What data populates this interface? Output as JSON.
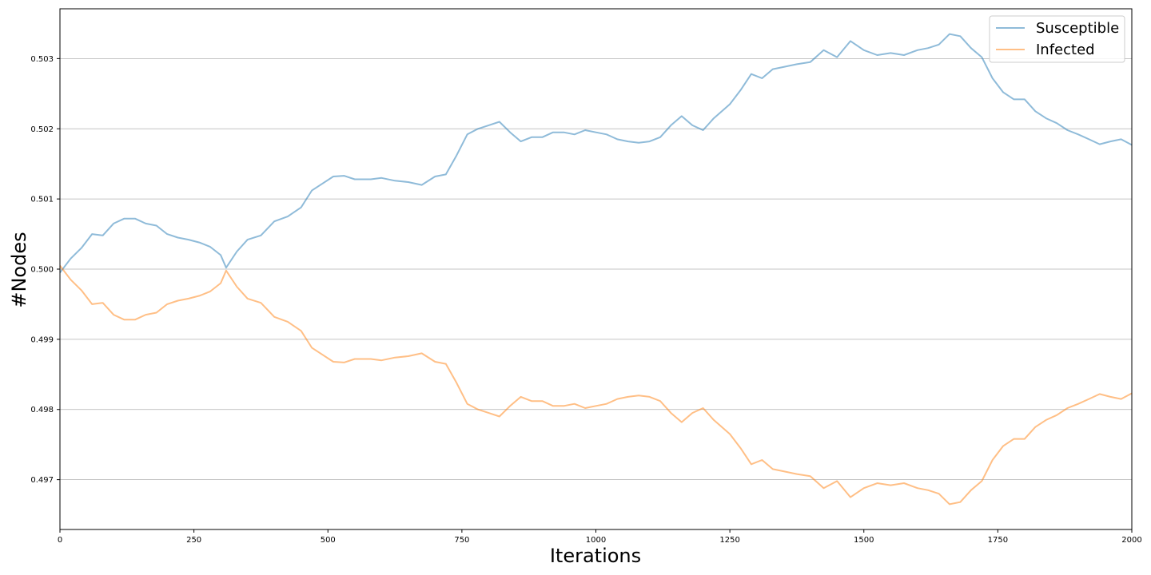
{
  "chart_data": {
    "type": "line",
    "title": "",
    "xlabel": "Iterations",
    "ylabel": "#Nodes",
    "xlim": [
      0,
      2000
    ],
    "ylim": [
      0.49629,
      0.50371
    ],
    "xticks": [
      0,
      250,
      500,
      750,
      1000,
      1250,
      1500,
      1750,
      2000
    ],
    "xtick_labels": [
      "0",
      "250",
      "500",
      "750",
      "1000",
      "1250",
      "1500",
      "1750",
      "2000"
    ],
    "yticks": [
      0.497,
      0.498,
      0.499,
      0.5,
      0.501,
      0.502,
      0.503
    ],
    "ytick_labels": [
      "0.497",
      "0.498",
      "0.499",
      "0.500",
      "0.501",
      "0.502",
      "0.503"
    ],
    "grid": "horizontal",
    "legend_position": "top-right",
    "series": [
      {
        "name": "Susceptible",
        "color": "#1f77b4",
        "points": [
          [
            0,
            0.49995
          ],
          [
            20,
            0.50015
          ],
          [
            40,
            0.5003
          ],
          [
            60,
            0.5005
          ],
          [
            80,
            0.50048
          ],
          [
            100,
            0.50065
          ],
          [
            120,
            0.50072
          ],
          [
            140,
            0.50072
          ],
          [
            160,
            0.50065
          ],
          [
            180,
            0.50062
          ],
          [
            200,
            0.5005
          ],
          [
            220,
            0.50045
          ],
          [
            240,
            0.50042
          ],
          [
            260,
            0.50038
          ],
          [
            280,
            0.50032
          ],
          [
            300,
            0.5002
          ],
          [
            310,
            0.50002
          ],
          [
            330,
            0.50025
          ],
          [
            350,
            0.50042
          ],
          [
            375,
            0.50048
          ],
          [
            400,
            0.50068
          ],
          [
            425,
            0.50075
          ],
          [
            450,
            0.50088
          ],
          [
            470,
            0.50112
          ],
          [
            490,
            0.50122
          ],
          [
            510,
            0.50132
          ],
          [
            530,
            0.50133
          ],
          [
            550,
            0.50128
          ],
          [
            580,
            0.50128
          ],
          [
            600,
            0.5013
          ],
          [
            625,
            0.50126
          ],
          [
            650,
            0.50124
          ],
          [
            675,
            0.5012
          ],
          [
            700,
            0.50132
          ],
          [
            720,
            0.50135
          ],
          [
            740,
            0.50162
          ],
          [
            760,
            0.50192
          ],
          [
            780,
            0.502
          ],
          [
            800,
            0.50205
          ],
          [
            820,
            0.5021
          ],
          [
            840,
            0.50195
          ],
          [
            860,
            0.50182
          ],
          [
            880,
            0.50188
          ],
          [
            900,
            0.50188
          ],
          [
            920,
            0.50195
          ],
          [
            940,
            0.50195
          ],
          [
            960,
            0.50192
          ],
          [
            980,
            0.50198
          ],
          [
            1000,
            0.50195
          ],
          [
            1020,
            0.50192
          ],
          [
            1040,
            0.50185
          ],
          [
            1060,
            0.50182
          ],
          [
            1080,
            0.5018
          ],
          [
            1100,
            0.50182
          ],
          [
            1120,
            0.50188
          ],
          [
            1140,
            0.50205
          ],
          [
            1160,
            0.50218
          ],
          [
            1180,
            0.50205
          ],
          [
            1200,
            0.50198
          ],
          [
            1220,
            0.50215
          ],
          [
            1250,
            0.50235
          ],
          [
            1270,
            0.50255
          ],
          [
            1290,
            0.50278
          ],
          [
            1310,
            0.50272
          ],
          [
            1330,
            0.50285
          ],
          [
            1350,
            0.50288
          ],
          [
            1375,
            0.50292
          ],
          [
            1400,
            0.50295
          ],
          [
            1425,
            0.50312
          ],
          [
            1450,
            0.50302
          ],
          [
            1475,
            0.50325
          ],
          [
            1500,
            0.50312
          ],
          [
            1525,
            0.50305
          ],
          [
            1550,
            0.50308
          ],
          [
            1575,
            0.50305
          ],
          [
            1600,
            0.50312
          ],
          [
            1620,
            0.50315
          ],
          [
            1640,
            0.5032
          ],
          [
            1660,
            0.50335
          ],
          [
            1680,
            0.50332
          ],
          [
            1700,
            0.50315
          ],
          [
            1720,
            0.50302
          ],
          [
            1740,
            0.50272
          ],
          [
            1760,
            0.50252
          ],
          [
            1780,
            0.50242
          ],
          [
            1800,
            0.50242
          ],
          [
            1820,
            0.50225
          ],
          [
            1840,
            0.50215
          ],
          [
            1860,
            0.50208
          ],
          [
            1880,
            0.50198
          ],
          [
            1900,
            0.50192
          ],
          [
            1920,
            0.50185
          ],
          [
            1940,
            0.50178
          ],
          [
            1960,
            0.50182
          ],
          [
            1980,
            0.50185
          ],
          [
            2000,
            0.50177
          ]
        ]
      },
      {
        "name": "Infected",
        "color": "#ff7f0e",
        "points": [
          [
            0,
            0.50005
          ],
          [
            20,
            0.49985
          ],
          [
            40,
            0.4997
          ],
          [
            60,
            0.4995
          ],
          [
            80,
            0.49952
          ],
          [
            100,
            0.49935
          ],
          [
            120,
            0.49928
          ],
          [
            140,
            0.49928
          ],
          [
            160,
            0.49935
          ],
          [
            180,
            0.49938
          ],
          [
            200,
            0.4995
          ],
          [
            220,
            0.49955
          ],
          [
            240,
            0.49958
          ],
          [
            260,
            0.49962
          ],
          [
            280,
            0.49968
          ],
          [
            300,
            0.4998
          ],
          [
            310,
            0.49998
          ],
          [
            330,
            0.49975
          ],
          [
            350,
            0.49958
          ],
          [
            375,
            0.49952
          ],
          [
            400,
            0.49932
          ],
          [
            425,
            0.49925
          ],
          [
            450,
            0.49912
          ],
          [
            470,
            0.49888
          ],
          [
            490,
            0.49878
          ],
          [
            510,
            0.49868
          ],
          [
            530,
            0.49867
          ],
          [
            550,
            0.49872
          ],
          [
            580,
            0.49872
          ],
          [
            600,
            0.4987
          ],
          [
            625,
            0.49874
          ],
          [
            650,
            0.49876
          ],
          [
            675,
            0.4988
          ],
          [
            700,
            0.49868
          ],
          [
            720,
            0.49865
          ],
          [
            740,
            0.49838
          ],
          [
            760,
            0.49808
          ],
          [
            780,
            0.498
          ],
          [
            800,
            0.49795
          ],
          [
            820,
            0.4979
          ],
          [
            840,
            0.49805
          ],
          [
            860,
            0.49818
          ],
          [
            880,
            0.49812
          ],
          [
            900,
            0.49812
          ],
          [
            920,
            0.49805
          ],
          [
            940,
            0.49805
          ],
          [
            960,
            0.49808
          ],
          [
            980,
            0.49802
          ],
          [
            1000,
            0.49805
          ],
          [
            1020,
            0.49808
          ],
          [
            1040,
            0.49815
          ],
          [
            1060,
            0.49818
          ],
          [
            1080,
            0.4982
          ],
          [
            1100,
            0.49818
          ],
          [
            1120,
            0.49812
          ],
          [
            1140,
            0.49795
          ],
          [
            1160,
            0.49782
          ],
          [
            1180,
            0.49795
          ],
          [
            1200,
            0.49802
          ],
          [
            1220,
            0.49785
          ],
          [
            1250,
            0.49765
          ],
          [
            1270,
            0.49745
          ],
          [
            1290,
            0.49722
          ],
          [
            1310,
            0.49728
          ],
          [
            1330,
            0.49715
          ],
          [
            1350,
            0.49712
          ],
          [
            1375,
            0.49708
          ],
          [
            1400,
            0.49705
          ],
          [
            1425,
            0.49688
          ],
          [
            1450,
            0.49698
          ],
          [
            1475,
            0.49675
          ],
          [
            1500,
            0.49688
          ],
          [
            1525,
            0.49695
          ],
          [
            1550,
            0.49692
          ],
          [
            1575,
            0.49695
          ],
          [
            1600,
            0.49688
          ],
          [
            1620,
            0.49685
          ],
          [
            1640,
            0.4968
          ],
          [
            1660,
            0.49665
          ],
          [
            1680,
            0.49668
          ],
          [
            1700,
            0.49685
          ],
          [
            1720,
            0.49698
          ],
          [
            1740,
            0.49728
          ],
          [
            1760,
            0.49748
          ],
          [
            1780,
            0.49758
          ],
          [
            1800,
            0.49758
          ],
          [
            1820,
            0.49775
          ],
          [
            1840,
            0.49785
          ],
          [
            1860,
            0.49792
          ],
          [
            1880,
            0.49802
          ],
          [
            1900,
            0.49808
          ],
          [
            1920,
            0.49815
          ],
          [
            1940,
            0.49822
          ],
          [
            1960,
            0.49818
          ],
          [
            1980,
            0.49815
          ],
          [
            2000,
            0.49823
          ]
        ]
      }
    ]
  }
}
